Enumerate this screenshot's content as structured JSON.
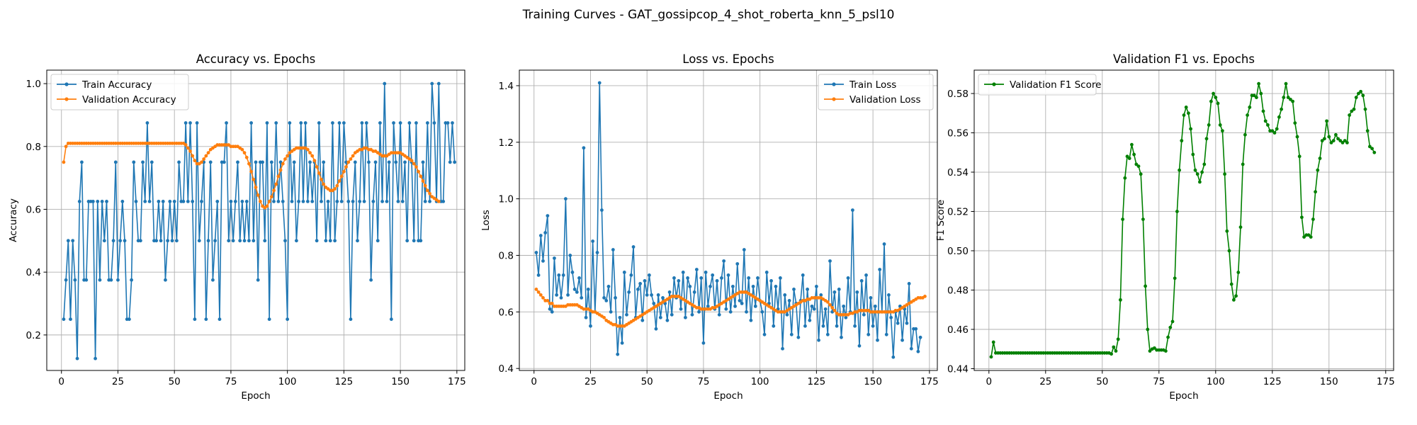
{
  "figure": {
    "suptitle": "Training Curves - GAT_gossipcop_4_shot_roberta_knn_5_psl10"
  },
  "colors": {
    "blue": "#1f77b4",
    "orange": "#ff7f0e",
    "green": "#008000",
    "grid": "#b0b0b0"
  },
  "chart_data": [
    {
      "type": "line",
      "title": "Accuracy vs. Epochs",
      "xlabel": "Epoch",
      "ylabel": "Accuracy",
      "xlim": [
        -6.5,
        178.5
      ],
      "ylim": [
        0.087,
        1.043
      ],
      "xticks": [
        0,
        25,
        50,
        75,
        100,
        125,
        150,
        175
      ],
      "yticks": [
        0.2,
        0.4,
        0.6,
        0.8,
        1.0
      ],
      "ytick_labels": [
        "0.2",
        "0.4",
        "0.6",
        "0.8",
        "1.0"
      ],
      "grid": true,
      "legend_position": "upper-left",
      "series": [
        {
          "name": "Train Accuracy",
          "color": "#1f77b4",
          "x_start": 1,
          "values": [
            0.25,
            0.375,
            0.5,
            0.25,
            0.5,
            0.375,
            0.125,
            0.625,
            0.75,
            0.375,
            0.375,
            0.625,
            0.625,
            0.625,
            0.125,
            0.625,
            0.375,
            0.625,
            0.5,
            0.625,
            0.375,
            0.375,
            0.5,
            0.75,
            0.375,
            0.5,
            0.625,
            0.5,
            0.25,
            0.25,
            0.375,
            0.75,
            0.625,
            0.5,
            0.5,
            0.75,
            0.625,
            0.875,
            0.625,
            0.75,
            0.5,
            0.5,
            0.625,
            0.5,
            0.625,
            0.375,
            0.5,
            0.625,
            0.5,
            0.625,
            0.5,
            0.75,
            0.625,
            0.625,
            0.875,
            0.625,
            0.875,
            0.625,
            0.25,
            0.875,
            0.5,
            0.625,
            0.75,
            0.25,
            0.5,
            0.75,
            0.375,
            0.5,
            0.625,
            0.25,
            0.75,
            0.75,
            0.875,
            0.5,
            0.625,
            0.5,
            0.625,
            0.75,
            0.5,
            0.625,
            0.5,
            0.625,
            0.5,
            0.875,
            0.5,
            0.75,
            0.375,
            0.75,
            0.75,
            0.5,
            0.875,
            0.25,
            0.75,
            0.625,
            0.875,
            0.625,
            0.75,
            0.625,
            0.5,
            0.25,
            0.875,
            0.625,
            0.75,
            0.5,
            0.625,
            0.875,
            0.625,
            0.875,
            0.625,
            0.75,
            0.625,
            0.75,
            0.5,
            0.875,
            0.625,
            0.75,
            0.5,
            0.625,
            0.5,
            0.875,
            0.5,
            0.625,
            0.875,
            0.625,
            0.875,
            0.75,
            0.625,
            0.25,
            0.625,
            0.75,
            0.5,
            0.625,
            0.875,
            0.625,
            0.875,
            0.75,
            0.375,
            0.625,
            0.75,
            0.5,
            0.875,
            0.625,
            1.0,
            0.625,
            0.75,
            0.25,
            0.875,
            0.75,
            0.625,
            0.875,
            0.625,
            0.75,
            0.5,
            0.875,
            0.75,
            0.5,
            0.875,
            0.5,
            0.5,
            0.75,
            0.625,
            0.875,
            0.625,
            1.0,
            0.875,
            0.625,
            1.0,
            0.625,
            0.625,
            0.875,
            0.875,
            0.75,
            0.875,
            0.75
          ]
        },
        {
          "name": "Validation Accuracy",
          "color": "#ff7f0e",
          "x_start": 1,
          "values": [
            0.75,
            0.8,
            0.81,
            0.81,
            0.81,
            0.81,
            0.81,
            0.81,
            0.81,
            0.81,
            0.81,
            0.81,
            0.81,
            0.81,
            0.81,
            0.81,
            0.81,
            0.81,
            0.81,
            0.81,
            0.81,
            0.81,
            0.81,
            0.81,
            0.81,
            0.81,
            0.81,
            0.81,
            0.81,
            0.81,
            0.81,
            0.81,
            0.81,
            0.81,
            0.81,
            0.81,
            0.81,
            0.81,
            0.81,
            0.81,
            0.81,
            0.81,
            0.81,
            0.81,
            0.81,
            0.81,
            0.81,
            0.81,
            0.81,
            0.81,
            0.81,
            0.81,
            0.81,
            0.81,
            0.805,
            0.795,
            0.785,
            0.77,
            0.755,
            0.745,
            0.745,
            0.75,
            0.76,
            0.77,
            0.78,
            0.79,
            0.795,
            0.8,
            0.805,
            0.805,
            0.805,
            0.805,
            0.805,
            0.805,
            0.8,
            0.8,
            0.8,
            0.8,
            0.795,
            0.79,
            0.78,
            0.765,
            0.745,
            0.72,
            0.695,
            0.67,
            0.645,
            0.625,
            0.61,
            0.605,
            0.61,
            0.625,
            0.64,
            0.66,
            0.68,
            0.705,
            0.725,
            0.745,
            0.76,
            0.77,
            0.78,
            0.785,
            0.79,
            0.795,
            0.795,
            0.795,
            0.795,
            0.795,
            0.79,
            0.78,
            0.77,
            0.755,
            0.735,
            0.715,
            0.695,
            0.68,
            0.67,
            0.665,
            0.66,
            0.66,
            0.665,
            0.675,
            0.69,
            0.705,
            0.72,
            0.735,
            0.75,
            0.76,
            0.77,
            0.78,
            0.785,
            0.79,
            0.79,
            0.795,
            0.795,
            0.79,
            0.79,
            0.785,
            0.785,
            0.78,
            0.775,
            0.77,
            0.77,
            0.77,
            0.775,
            0.78,
            0.78,
            0.78,
            0.78,
            0.78,
            0.775,
            0.77,
            0.765,
            0.76,
            0.755,
            0.745,
            0.735,
            0.72,
            0.705,
            0.69,
            0.675,
            0.66,
            0.65,
            0.64,
            0.635,
            0.63,
            0.625
          ]
        }
      ]
    },
    {
      "type": "line",
      "title": "Loss vs. Epochs",
      "xlabel": "Epoch",
      "ylabel": "Loss",
      "xlim": [
        -6.5,
        178.5
      ],
      "ylim": [
        0.393,
        1.455
      ],
      "xticks": [
        0,
        25,
        50,
        75,
        100,
        125,
        150,
        175
      ],
      "yticks": [
        0.4,
        0.6,
        0.8,
        1.0,
        1.2,
        1.4
      ],
      "ytick_labels": [
        "0.4",
        "0.6",
        "0.8",
        "1.0",
        "1.2",
        "1.4"
      ],
      "grid": true,
      "legend_position": "upper-right",
      "series": [
        {
          "name": "Train Loss",
          "color": "#1f77b4",
          "x_start": 1,
          "values": [
            0.81,
            0.73,
            0.87,
            0.78,
            0.88,
            0.94,
            0.61,
            0.6,
            0.79,
            0.66,
            0.73,
            0.65,
            0.73,
            1.0,
            0.66,
            0.8,
            0.74,
            0.68,
            0.67,
            0.72,
            0.65,
            1.18,
            0.58,
            0.68,
            0.55,
            0.85,
            0.6,
            0.81,
            1.41,
            0.96,
            0.65,
            0.64,
            0.69,
            0.6,
            0.82,
            0.65,
            0.45,
            0.58,
            0.49,
            0.74,
            0.59,
            0.67,
            0.73,
            0.83,
            0.58,
            0.68,
            0.7,
            0.57,
            0.71,
            0.66,
            0.73,
            0.66,
            0.63,
            0.54,
            0.66,
            0.58,
            0.65,
            0.63,
            0.57,
            0.67,
            0.59,
            0.72,
            0.65,
            0.71,
            0.61,
            0.74,
            0.58,
            0.72,
            0.69,
            0.59,
            0.67,
            0.75,
            0.6,
            0.72,
            0.49,
            0.74,
            0.62,
            0.69,
            0.73,
            0.61,
            0.71,
            0.59,
            0.72,
            0.78,
            0.61,
            0.73,
            0.6,
            0.69,
            0.62,
            0.77,
            0.64,
            0.63,
            0.82,
            0.6,
            0.72,
            0.57,
            0.69,
            0.62,
            0.72,
            0.64,
            0.6,
            0.52,
            0.74,
            0.63,
            0.71,
            0.55,
            0.69,
            0.61,
            0.72,
            0.47,
            0.66,
            0.59,
            0.64,
            0.52,
            0.68,
            0.63,
            0.51,
            0.64,
            0.73,
            0.55,
            0.68,
            0.57,
            0.62,
            0.61,
            0.69,
            0.5,
            0.66,
            0.55,
            0.61,
            0.52,
            0.78,
            0.6,
            0.67,
            0.55,
            0.68,
            0.51,
            0.62,
            0.58,
            0.72,
            0.6,
            0.96,
            0.55,
            0.67,
            0.48,
            0.71,
            0.59,
            0.73,
            0.52,
            0.65,
            0.55,
            0.62,
            0.5,
            0.75,
            0.6,
            0.84,
            0.52,
            0.66,
            0.58,
            0.44,
            0.6,
            0.56,
            0.62,
            0.5,
            0.61,
            0.56,
            0.7,
            0.47,
            0.54,
            0.54,
            0.46,
            0.51
          ]
        },
        {
          "name": "Validation Loss",
          "color": "#ff7f0e",
          "x_start": 1,
          "values": [
            0.68,
            0.67,
            0.66,
            0.65,
            0.64,
            0.64,
            0.63,
            0.63,
            0.62,
            0.62,
            0.62,
            0.62,
            0.62,
            0.62,
            0.625,
            0.625,
            0.625,
            0.625,
            0.625,
            0.62,
            0.615,
            0.61,
            0.61,
            0.61,
            0.605,
            0.6,
            0.6,
            0.595,
            0.59,
            0.585,
            0.58,
            0.57,
            0.565,
            0.56,
            0.555,
            0.555,
            0.55,
            0.55,
            0.55,
            0.55,
            0.555,
            0.56,
            0.565,
            0.57,
            0.575,
            0.58,
            0.585,
            0.59,
            0.595,
            0.6,
            0.605,
            0.61,
            0.615,
            0.62,
            0.625,
            0.63,
            0.635,
            0.64,
            0.645,
            0.65,
            0.655,
            0.655,
            0.655,
            0.655,
            0.65,
            0.645,
            0.64,
            0.635,
            0.63,
            0.625,
            0.62,
            0.615,
            0.615,
            0.61,
            0.61,
            0.61,
            0.61,
            0.61,
            0.615,
            0.615,
            0.62,
            0.625,
            0.63,
            0.635,
            0.64,
            0.645,
            0.65,
            0.655,
            0.66,
            0.665,
            0.67,
            0.67,
            0.67,
            0.67,
            0.665,
            0.66,
            0.655,
            0.65,
            0.645,
            0.64,
            0.635,
            0.63,
            0.625,
            0.62,
            0.615,
            0.61,
            0.605,
            0.6,
            0.6,
            0.6,
            0.6,
            0.605,
            0.61,
            0.615,
            0.62,
            0.625,
            0.63,
            0.635,
            0.64,
            0.64,
            0.645,
            0.645,
            0.65,
            0.65,
            0.65,
            0.65,
            0.65,
            0.645,
            0.64,
            0.635,
            0.625,
            0.615,
            0.605,
            0.595,
            0.59,
            0.59,
            0.59,
            0.59,
            0.59,
            0.595,
            0.595,
            0.6,
            0.6,
            0.605,
            0.605,
            0.605,
            0.605,
            0.605,
            0.6,
            0.6,
            0.6,
            0.6,
            0.6,
            0.6,
            0.6,
            0.6,
            0.6,
            0.6,
            0.6,
            0.605,
            0.605,
            0.61,
            0.615,
            0.62,
            0.625,
            0.63,
            0.635,
            0.64,
            0.645,
            0.65,
            0.65,
            0.65,
            0.655
          ]
        }
      ]
    },
    {
      "type": "line",
      "title": "Validation F1 vs. Epochs",
      "xlabel": "Epoch",
      "ylabel": "F1 Score",
      "xlim": [
        -6.5,
        178.5
      ],
      "ylim": [
        0.4391,
        0.5919
      ],
      "xticks": [
        0,
        25,
        50,
        75,
        100,
        125,
        150,
        175
      ],
      "yticks": [
        0.44,
        0.46,
        0.48,
        0.5,
        0.52,
        0.54,
        0.56,
        0.58
      ],
      "ytick_labels": [
        "0.44",
        "0.46",
        "0.48",
        "0.50",
        "0.52",
        "0.54",
        "0.56",
        "0.58"
      ],
      "grid": true,
      "legend_position": "upper-left",
      "series": [
        {
          "name": "Validation F1 Score",
          "color": "#008000",
          "x_start": 1,
          "values": [
            0.446,
            0.4535,
            0.448,
            0.448,
            0.448,
            0.448,
            0.448,
            0.448,
            0.448,
            0.448,
            0.448,
            0.448,
            0.448,
            0.448,
            0.448,
            0.448,
            0.448,
            0.448,
            0.448,
            0.448,
            0.448,
            0.448,
            0.448,
            0.448,
            0.448,
            0.448,
            0.448,
            0.448,
            0.448,
            0.448,
            0.448,
            0.448,
            0.448,
            0.448,
            0.448,
            0.448,
            0.448,
            0.448,
            0.448,
            0.448,
            0.448,
            0.448,
            0.448,
            0.448,
            0.448,
            0.448,
            0.448,
            0.448,
            0.448,
            0.448,
            0.448,
            0.448,
            0.448,
            0.4475,
            0.451,
            0.449,
            0.455,
            0.475,
            0.516,
            0.537,
            0.548,
            0.547,
            0.554,
            0.549,
            0.544,
            0.543,
            0.539,
            0.516,
            0.482,
            0.46,
            0.449,
            0.45,
            0.4505,
            0.4495,
            0.4495,
            0.4495,
            0.4495,
            0.449,
            0.456,
            0.461,
            0.464,
            0.486,
            0.52,
            0.541,
            0.556,
            0.569,
            0.573,
            0.57,
            0.562,
            0.549,
            0.541,
            0.539,
            0.535,
            0.54,
            0.544,
            0.557,
            0.564,
            0.576,
            0.58,
            0.578,
            0.575,
            0.564,
            0.561,
            0.539,
            0.51,
            0.5,
            0.483,
            0.475,
            0.477,
            0.489,
            0.512,
            0.544,
            0.559,
            0.569,
            0.573,
            0.579,
            0.579,
            0.578,
            0.585,
            0.58,
            0.571,
            0.566,
            0.564,
            0.561,
            0.561,
            0.56,
            0.562,
            0.568,
            0.572,
            0.578,
            0.585,
            0.578,
            0.577,
            0.576,
            0.565,
            0.558,
            0.548,
            0.517,
            0.507,
            0.508,
            0.508,
            0.507,
            0.516,
            0.53,
            0.541,
            0.547,
            0.556,
            0.557,
            0.566,
            0.558,
            0.555,
            0.556,
            0.559,
            0.557,
            0.556,
            0.555,
            0.556,
            0.555,
            0.569,
            0.571,
            0.572,
            0.578,
            0.58,
            0.581,
            0.579,
            0.572,
            0.561,
            0.553,
            0.552,
            0.55
          ]
        }
      ]
    }
  ]
}
